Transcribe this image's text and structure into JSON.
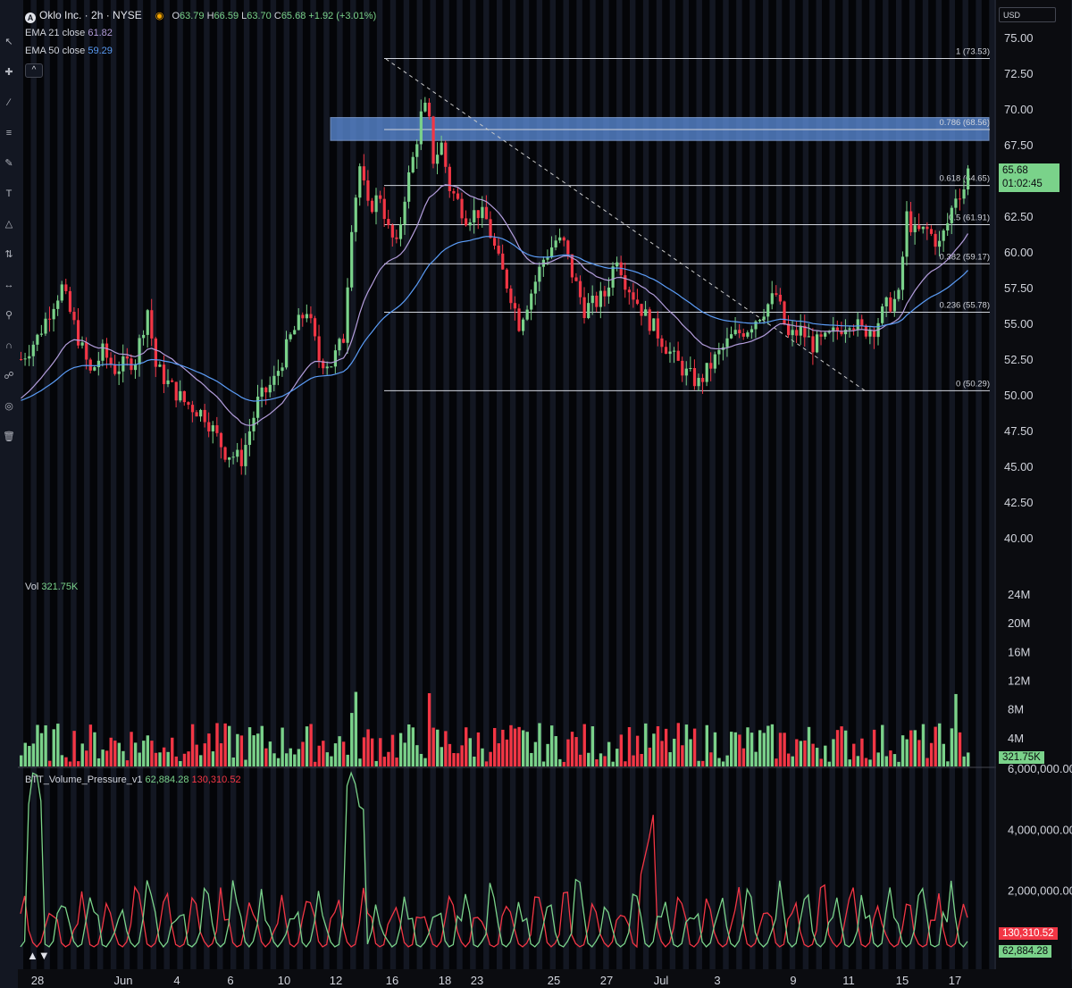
{
  "header": {
    "symbol_icon": "A",
    "title": "Oklo Inc. · 2h · NYSE",
    "ohlc": {
      "o_label": "O",
      "o": "63.79",
      "h_label": "H",
      "h": "66.59",
      "l_label": "L",
      "l": "63.70",
      "c_label": "C",
      "c": "65.68",
      "change": "+1.92 (+3.01%)"
    },
    "collapse": "^"
  },
  "indicators": [
    {
      "label": "EMA 21 close",
      "value": "61.82",
      "color": "#b39ddb"
    },
    {
      "label": "EMA 50 close",
      "value": "59.29",
      "color": "#5b9cf6"
    }
  ],
  "currency": "USD",
  "last_price": {
    "value": "65.68",
    "countdown": "01:02:45"
  },
  "volume_legend": {
    "label": "Vol",
    "value": "321.75K",
    "tag": "321.75K"
  },
  "pressure_legend": {
    "label": "BTT_Volume_Pressure_v1",
    "green": "62,884.28",
    "red": "130,310.52"
  },
  "colors": {
    "up": "#7ad28a",
    "down": "#f23645",
    "ema21": "#b39ddb",
    "ema50": "#5b9cf6",
    "zone": "#5b8bd6",
    "fib": "#d1d4dc"
  },
  "toolbar_icons": [
    "cursor-icon",
    "crosshair-icon",
    "trendline-icon",
    "fib-icon",
    "brush-icon",
    "text-icon",
    "pattern-icon",
    "prediction-icon",
    "measure-icon",
    "zoom-icon",
    "magnet-icon",
    "lock-icon",
    "eye-icon",
    "trash-icon"
  ],
  "chart_data": {
    "type": "candlestick",
    "symbol": "Oklo Inc.",
    "interval": "2h",
    "exchange": "NYSE",
    "ylim": [
      38.5,
      76.5
    ],
    "y_ticks": [
      "75.00",
      "72.50",
      "70.00",
      "67.50",
      "65.00",
      "62.50",
      "60.00",
      "57.50",
      "55.00",
      "52.50",
      "50.00",
      "47.50",
      "45.00",
      "42.50",
      "40.00"
    ],
    "x_ticks": [
      "28",
      "Jun",
      "4",
      "6",
      "10",
      "12",
      "16",
      "18",
      "23",
      "25",
      "27",
      "Jul",
      "3",
      "9",
      "11",
      "15",
      "17"
    ],
    "fibonacci": [
      {
        "level": "1",
        "price": "73.53"
      },
      {
        "level": "0.786",
        "price": "68.56"
      },
      {
        "level": "0.618",
        "price": "64.65"
      },
      {
        "level": "0.5",
        "price": "61.91"
      },
      {
        "level": "0.382",
        "price": "59.17"
      },
      {
        "level": "0.236",
        "price": "55.78"
      },
      {
        "level": "0",
        "price": "50.29"
      }
    ],
    "zone": {
      "low": 67.8,
      "high": 69.4
    },
    "price_path": [
      [
        0,
        52.5
      ],
      [
        4,
        54
      ],
      [
        8,
        56.5
      ],
      [
        10,
        57.5
      ],
      [
        14,
        54
      ],
      [
        17,
        51.5
      ],
      [
        20,
        53
      ],
      [
        23,
        51.8
      ],
      [
        28,
        52.5
      ],
      [
        31,
        56
      ],
      [
        33,
        52
      ],
      [
        36,
        50.8
      ],
      [
        40,
        49.5
      ],
      [
        45,
        48.6
      ],
      [
        50,
        46
      ],
      [
        54,
        45.5
      ],
      [
        58,
        49.5
      ],
      [
        62,
        51
      ],
      [
        66,
        54
      ],
      [
        70,
        56
      ],
      [
        73,
        52.5
      ],
      [
        76,
        52.2
      ],
      [
        79,
        54
      ],
      [
        81,
        62
      ],
      [
        83,
        66
      ],
      [
        85,
        63
      ],
      [
        88,
        64
      ],
      [
        90,
        61.5
      ],
      [
        92,
        60.3
      ],
      [
        94,
        64
      ],
      [
        96,
        66.5
      ],
      [
        98,
        69.5
      ],
      [
        99.5,
        70.2
      ],
      [
        101,
        66.5
      ],
      [
        103,
        67.5
      ],
      [
        105,
        64.5
      ],
      [
        107,
        63.5
      ],
      [
        109,
        62.5
      ],
      [
        112,
        62.8
      ],
      [
        114,
        62.2
      ],
      [
        117,
        59.3
      ],
      [
        120,
        57
      ],
      [
        122,
        55
      ],
      [
        125,
        57.2
      ],
      [
        128,
        59.5
      ],
      [
        131,
        60.8
      ],
      [
        133,
        60.5
      ],
      [
        135,
        58.5
      ],
      [
        138,
        56
      ],
      [
        141,
        56.5
      ],
      [
        143,
        57
      ],
      [
        146,
        59.8
      ],
      [
        148,
        58
      ],
      [
        151,
        56.5
      ],
      [
        153,
        55.5
      ],
      [
        156,
        54.3
      ],
      [
        160,
        52.5
      ],
      [
        163,
        51.5
      ],
      [
        166,
        50.8
      ],
      [
        170,
        52.5
      ],
      [
        174,
        54
      ],
      [
        178,
        54.7
      ],
      [
        182,
        56
      ],
      [
        185,
        57
      ],
      [
        188,
        54
      ],
      [
        191,
        54.5
      ],
      [
        194,
        53.5
      ],
      [
        197,
        53.8
      ],
      [
        200,
        54.5
      ],
      [
        203,
        55.3
      ],
      [
        206,
        54.5
      ],
      [
        209,
        54.7
      ],
      [
        212,
        56.2
      ],
      [
        215,
        56.8
      ],
      [
        217,
        62.5
      ],
      [
        219,
        61.3
      ],
      [
        222,
        61.5
      ],
      [
        225,
        60.5
      ],
      [
        227,
        62
      ],
      [
        229,
        64
      ],
      [
        231,
        64.5
      ],
      [
        232,
        65.68
      ]
    ],
    "volume": {
      "ylabel_ticks": [
        "24M",
        "20M",
        "16M",
        "12M",
        "8M",
        "4M"
      ],
      "last": "321.75K"
    },
    "pressure": {
      "ylabel_ticks": [
        "6,000,000.00",
        "4,000,000.00",
        "2,000,000.00"
      ],
      "green_last": "62,884.28",
      "red_last": "130,310.52"
    }
  }
}
